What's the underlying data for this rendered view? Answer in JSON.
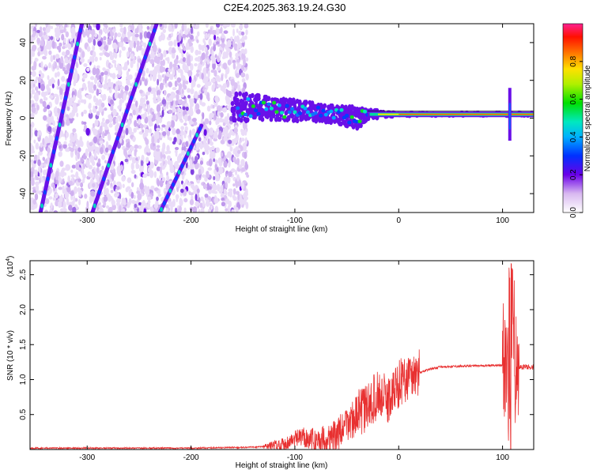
{
  "chart_data": [
    {
      "type": "heatmap",
      "title": "C2E4.2025.363.19.24.G30",
      "xlabel": "Height of straight line (km)",
      "ylabel": "Frequency (Hz)",
      "xlim": [
        -355,
        130
      ],
      "ylim": [
        -50,
        50
      ],
      "xticks": [
        -300,
        -200,
        -100,
        0,
        100
      ],
      "yticks": [
        -40,
        -20,
        0,
        20,
        40
      ],
      "colorbar": {
        "label": "Normalized spectral amplitude",
        "range": [
          0,
          1
        ],
        "ticks": [
          0.0,
          0.2,
          0.4,
          0.6,
          0.8
        ]
      },
      "noise_region": {
        "x": [
          -355,
          -145
        ],
        "y": [
          -50,
          50
        ]
      },
      "diagonal_lines": [
        {
          "x": [
            -345,
            -305
          ],
          "y": [
            -50,
            50
          ]
        },
        {
          "x": [
            -295,
            -233
          ],
          "y": [
            -50,
            50
          ]
        },
        {
          "x": [
            -230,
            -190
          ],
          "y": [
            -50,
            -4
          ]
        }
      ],
      "signal_band": [
        {
          "x": -160,
          "center": 5,
          "width": 16
        },
        {
          "x": -140,
          "center": 6,
          "width": 14
        },
        {
          "x": -120,
          "center": 5,
          "width": 12
        },
        {
          "x": -100,
          "center": 4,
          "width": 11
        },
        {
          "x": -80,
          "center": 3,
          "width": 10
        },
        {
          "x": -60,
          "center": 2,
          "width": 9
        },
        {
          "x": -40,
          "center": 0,
          "width": 12
        },
        {
          "x": -30,
          "center": 2,
          "width": 5
        },
        {
          "x": -10,
          "center": 2,
          "width": 3
        },
        {
          "x": 20,
          "center": 2,
          "width": 2
        },
        {
          "x": 60,
          "center": 2,
          "width": 2
        },
        {
          "x": 100,
          "center": 2,
          "width": 2
        },
        {
          "x": 130,
          "center": 2,
          "width": 2
        }
      ],
      "spike": {
        "x": 107,
        "y": [
          -12,
          16
        ]
      }
    },
    {
      "type": "line",
      "title": "",
      "xlabel": "Height of straight line (km)",
      "ylabel": "SNR (10 * v/v)",
      "y_multiplier": "(x10^4)",
      "xlim": [
        -355,
        130
      ],
      "ylim": [
        0,
        2.7
      ],
      "xticks": [
        -300,
        -200,
        -100,
        0,
        100
      ],
      "yticks": [
        0.5,
        1.0,
        1.5,
        2.0,
        2.5
      ],
      "series": [
        {
          "name": "SNR",
          "color": "#e83030",
          "x": [
            -355,
            -300,
            -200,
            -150,
            -130,
            -110,
            -100,
            -90,
            -80,
            -70,
            -60,
            -50,
            -40,
            -30,
            -20,
            -10,
            0,
            10,
            20,
            30,
            40,
            60,
            80,
            95,
            100,
            105,
            108,
            110,
            113,
            120,
            130
          ],
          "y": [
            0.02,
            0.02,
            0.02,
            0.03,
            0.04,
            0.08,
            0.15,
            0.18,
            0.12,
            0.16,
            0.2,
            0.35,
            0.5,
            0.6,
            0.8,
            0.7,
            0.95,
            1.05,
            1.1,
            1.15,
            1.18,
            1.19,
            1.2,
            1.2,
            1.21,
            1.25,
            0.3,
            1.3,
            1.18,
            1.18,
            1.18
          ]
        }
      ]
    }
  ],
  "axes_text": {
    "top_ylabel": "Frequency (Hz)",
    "top_xlabel": "Height of straight line (km)",
    "bottom_ylabel": "SNR (10 * v/v)",
    "bottom_xlabel": "Height of straight line (km)",
    "bottom_multiplier": "(x10",
    "bottom_multiplier_exp": "4",
    "bottom_multiplier_close": ")"
  }
}
